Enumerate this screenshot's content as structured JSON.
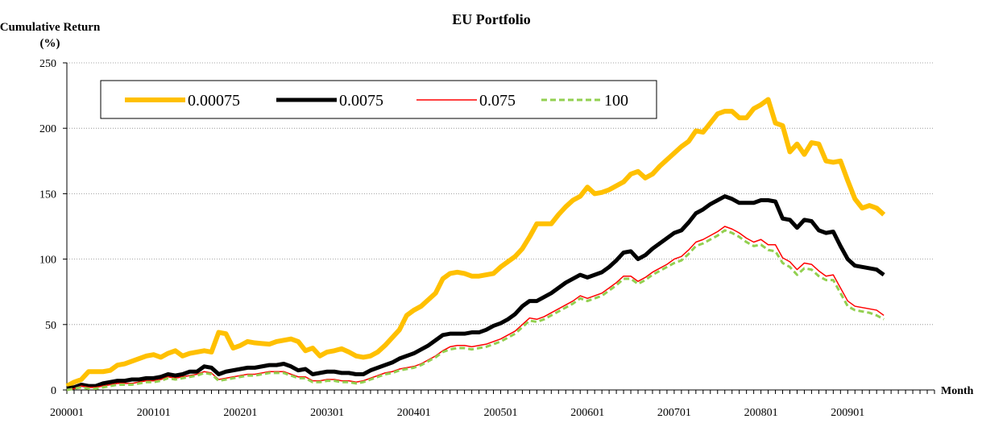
{
  "chart_data": {
    "type": "line",
    "title": "EU Portfolio",
    "ylabel": [
      "Cumulative Return",
      "(%)"
    ],
    "xlabel": "Month",
    "categories": [
      "200001",
      null,
      null,
      null,
      null,
      null,
      null,
      null,
      null,
      null,
      null,
      null,
      "200101",
      null,
      null,
      null,
      null,
      null,
      null,
      null,
      null,
      null,
      null,
      null,
      "200201",
      null,
      null,
      null,
      null,
      null,
      null,
      null,
      null,
      null,
      null,
      null,
      "200301",
      null,
      null,
      null,
      null,
      null,
      null,
      null,
      null,
      null,
      null,
      null,
      "200401",
      null,
      null,
      null,
      null,
      null,
      null,
      null,
      null,
      null,
      null,
      null,
      "200501",
      null,
      null,
      null,
      null,
      null,
      null,
      null,
      null,
      null,
      null,
      null,
      "200601",
      null,
      null,
      null,
      null,
      null,
      null,
      null,
      null,
      null,
      null,
      null,
      "200701",
      null,
      null,
      null,
      null,
      null,
      null,
      null,
      null,
      null,
      null,
      null,
      "200801",
      null,
      null,
      null,
      null,
      null,
      null,
      null,
      null,
      null,
      null,
      null,
      "200901",
      null,
      null,
      null,
      null,
      null,
      null,
      null,
      null,
      null,
      null,
      null
    ],
    "series": [
      {
        "name": "0.00075",
        "color": "#ffc000",
        "values": [
          3,
          6,
          8,
          14,
          14,
          14,
          15,
          19,
          20,
          22,
          24,
          26,
          27,
          25,
          28,
          30,
          26,
          28,
          29,
          30,
          29,
          44,
          43,
          32,
          34,
          37,
          36,
          35.5,
          35,
          37,
          38,
          39,
          37,
          30,
          32,
          26,
          29,
          30,
          31.5,
          29,
          26,
          25,
          26,
          29,
          34,
          40,
          46,
          57,
          61,
          64,
          69,
          74,
          85,
          89,
          90,
          89,
          87,
          87,
          88,
          89,
          94,
          98,
          102,
          108,
          117,
          127,
          127,
          127,
          134,
          140,
          145,
          148,
          155,
          150,
          151,
          153,
          156,
          159,
          165,
          167,
          162,
          165,
          171,
          176,
          181,
          186,
          190,
          198,
          197,
          204,
          211,
          213,
          213,
          208,
          208,
          215,
          218,
          222,
          204,
          202,
          182,
          188,
          180,
          189,
          188,
          175,
          174,
          175,
          160,
          146,
          139,
          141,
          139,
          134,
          null,
          null,
          null,
          null,
          null,
          null
        ]
      },
      {
        "name": "0.0075",
        "color": "#000000",
        "values": [
          1,
          2,
          4,
          3,
          3,
          5,
          6,
          7,
          7,
          8,
          8,
          9,
          9,
          10,
          12,
          11,
          12,
          14,
          14,
          18,
          17,
          12,
          14,
          15,
          16,
          17,
          17,
          18,
          19,
          19,
          20,
          18,
          15,
          16,
          12,
          13,
          14,
          14,
          13,
          13,
          12,
          12,
          15,
          17,
          19,
          21,
          24,
          26,
          28,
          31,
          34,
          38,
          42,
          43,
          43,
          43,
          44,
          44,
          46,
          49,
          51,
          54,
          58,
          64,
          68,
          68,
          71,
          74,
          78,
          82,
          85,
          88,
          86,
          88,
          90,
          94,
          99,
          105,
          106,
          100,
          103,
          108,
          112,
          116,
          120,
          122,
          128,
          135,
          138,
          142,
          145,
          148,
          146,
          143,
          143,
          143,
          145,
          145,
          144,
          131,
          130,
          124,
          130,
          129,
          122,
          120,
          121,
          110,
          100,
          95,
          94,
          93,
          92,
          88,
          null,
          null,
          null,
          null,
          null,
          null
        ]
      },
      {
        "name": "0.075",
        "color": "#ff0000",
        "values": [
          0,
          1,
          3,
          2,
          2,
          3,
          4,
          5,
          5,
          5,
          6,
          7,
          7,
          8,
          10,
          9,
          10,
          11,
          12,
          14,
          13,
          8,
          9,
          10,
          11,
          12,
          12,
          13,
          14,
          14,
          14,
          12,
          10,
          10,
          7,
          7,
          8,
          8,
          7,
          7,
          6,
          7,
          9,
          11,
          13,
          14,
          16,
          17,
          18,
          20,
          23,
          26,
          30,
          33,
          34,
          34,
          33,
          34,
          35,
          37,
          39,
          42,
          45,
          50,
          55,
          54,
          56,
          59,
          62,
          65,
          68,
          72,
          70,
          72,
          74,
          78,
          82,
          87,
          87,
          83,
          86,
          90,
          93,
          96,
          100,
          102,
          107,
          113,
          115,
          118,
          121,
          125,
          123,
          120,
          116,
          113,
          115,
          111,
          111,
          101,
          98,
          92,
          97,
          96,
          91,
          87,
          88,
          78,
          68,
          64,
          63,
          62,
          61,
          57,
          null,
          null,
          null,
          null,
          null,
          null
        ]
      },
      {
        "name": "100",
        "color": "#92d050",
        "values": [
          0,
          1,
          2,
          1,
          1,
          2,
          3,
          4,
          4,
          4,
          5,
          6,
          6,
          7,
          9,
          8,
          9,
          10,
          11,
          13,
          12,
          7,
          8,
          9,
          10,
          11,
          11,
          12,
          13,
          13,
          13,
          11,
          9,
          9,
          6,
          6,
          7,
          7,
          6,
          6,
          5,
          6,
          8,
          10,
          12,
          13,
          15,
          16,
          17,
          19,
          22,
          25,
          29,
          31,
          32,
          32,
          31,
          32,
          33,
          35,
          37,
          40,
          43,
          48,
          53,
          52,
          54,
          57,
          60,
          63,
          66,
          70,
          68,
          70,
          72,
          76,
          80,
          85,
          85,
          81,
          84,
          88,
          91,
          94,
          97,
          99,
          104,
          110,
          112,
          115,
          118,
          122,
          120,
          117,
          113,
          110,
          111,
          107,
          106,
          97,
          94,
          88,
          93,
          92,
          87,
          84,
          84,
          74,
          64,
          61,
          60,
          59,
          57,
          54,
          null,
          null,
          null,
          null,
          null,
          null
        ]
      }
    ],
    "ylim": [
      0,
      250
    ],
    "yticks": [
      0,
      50,
      100,
      150,
      200,
      250
    ],
    "grid": true,
    "legend": "top-left"
  }
}
